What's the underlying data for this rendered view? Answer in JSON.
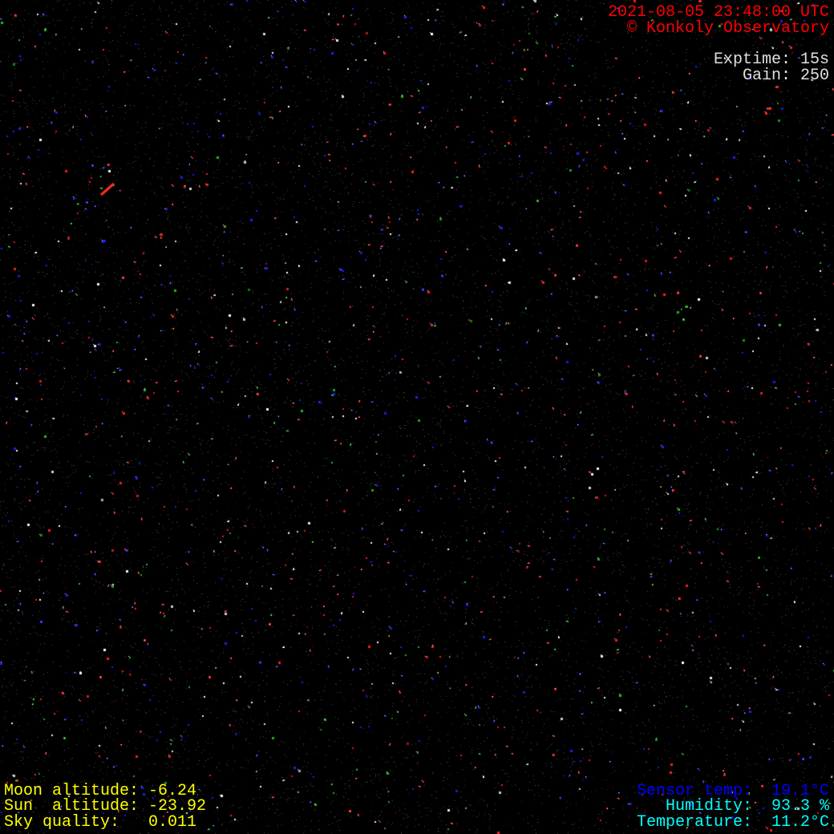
{
  "header": {
    "timestamp": "2021-08-05 23:48:00 UTC",
    "copyright": "© Konkoly Observatory",
    "exptime": "Exptime: 15s",
    "gain": "Gain: 250"
  },
  "bottom_left": {
    "moon_altitude": "Moon altitude: -6.24",
    "sun_altitude": "Sun  altitude: -23.92",
    "sky_quality": "Sky quality:   0.011"
  },
  "bottom_right": {
    "sensor_temp": "Sensor temp:  19.1°C",
    "humidity": "Humidity:  93.3 %",
    "temperature": "Temperature:  11.2°C"
  },
  "colors": {
    "header_text": "#ff0000",
    "camera_text": "#e0e0e0",
    "astro_text": "#ffff00",
    "sensor_text": "#0000ff",
    "weather_text": "#00ffff",
    "background": "#000000"
  }
}
